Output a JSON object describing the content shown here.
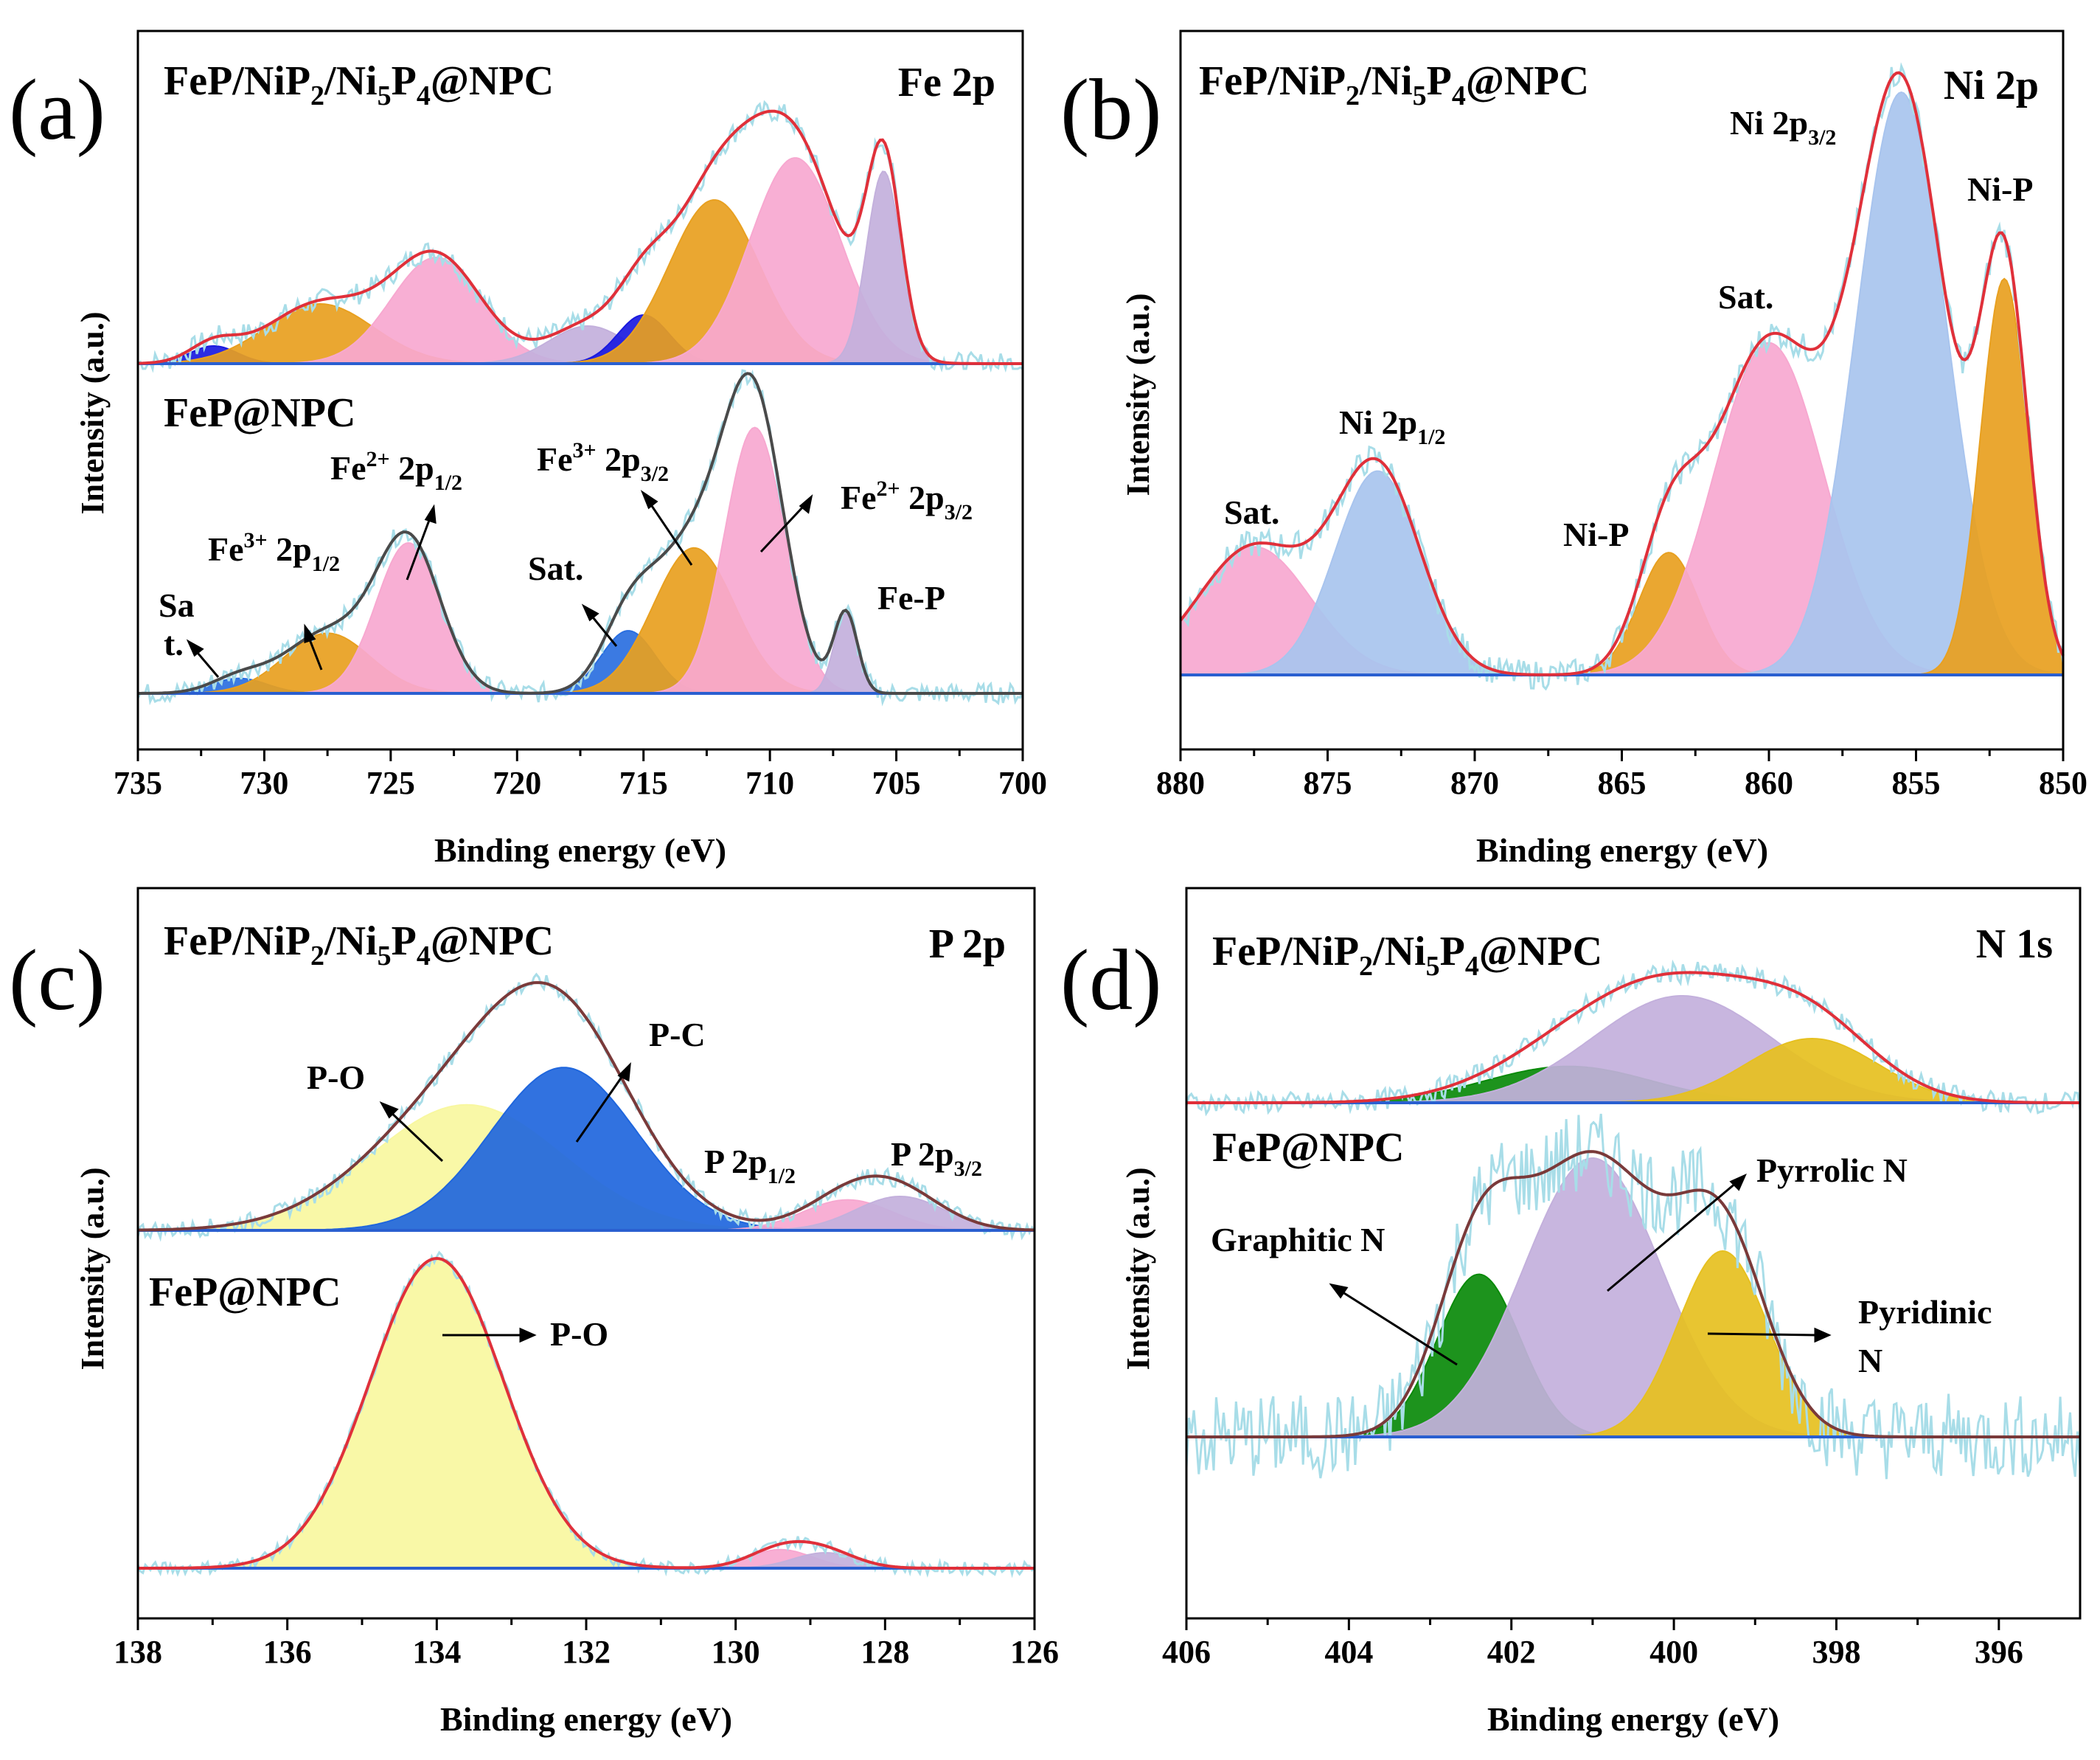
{
  "chart_data": [
    {
      "panel": "(a)",
      "type": "line",
      "title": "Fe 2p",
      "xlabel": "Binding energy (eV)",
      "ylabel": "Intensity (a.u.)",
      "xlim": [
        735,
        700
      ],
      "xticks": [
        735,
        730,
        725,
        720,
        715,
        710,
        705,
        700
      ],
      "subplots": [
        {
          "sample": "FeP/NiP2/Ni5P4@NPC",
          "sample_main": "FeP/NiP",
          "sub1": "2",
          "sample_mid": "/Ni",
          "sub2": "5",
          "sample_mid2": "P",
          "sub3": "4",
          "sample_tail": "@NPC",
          "ylim": [
            0,
            1.3
          ],
          "peaks": [
            {
              "center": 732.0,
              "height": 0.08,
              "fwhm": 2.2,
              "color": "#1a1adf",
              "name": "Sat."
            },
            {
              "center": 727.8,
              "height": 0.27,
              "fwhm": 5.0,
              "color": "#e8a020",
              "name": "Fe3+ 2p1/2"
            },
            {
              "center": 723.2,
              "height": 0.48,
              "fwhm": 4.2,
              "color": "#f7a8d0",
              "name": "Fe2+ 2p1/2"
            },
            {
              "center": 717.2,
              "height": 0.17,
              "fwhm": 3.6,
              "color": "#c3b0dc",
              "name": "Sat."
            },
            {
              "center": 715.0,
              "height": 0.22,
              "fwhm": 2.4,
              "color": "#1a1adf",
              "name": "Sat."
            },
            {
              "center": 712.2,
              "height": 0.74,
              "fwhm": 4.2,
              "color": "#e8a020",
              "name": "Fe3+ 2p3/2"
            },
            {
              "center": 709.0,
              "height": 0.93,
              "fwhm": 4.2,
              "color": "#f7a8d0",
              "name": "Fe2+ 2p3/2"
            },
            {
              "center": 705.5,
              "height": 0.87,
              "fwhm": 1.6,
              "color": "#c3b0dc",
              "name": "Fe-P"
            }
          ],
          "envelope_color": "#e0303a"
        },
        {
          "sample": "FeP@NPC",
          "ylim": [
            0,
            1.3
          ],
          "peaks": [
            {
              "center": 731.0,
              "height": 0.06,
              "fwhm": 2.6,
              "color": "#2a6fe0",
              "name": "Sat."
            },
            {
              "center": 727.5,
              "height": 0.24,
              "fwhm": 4.0,
              "color": "#e8a020",
              "name": "Fe3+ 2p1/2"
            },
            {
              "center": 724.3,
              "height": 0.6,
              "fwhm": 3.0,
              "color": "#f7a8d0",
              "name": "Fe2+ 2p1/2"
            },
            {
              "center": 715.6,
              "height": 0.25,
              "fwhm": 2.5,
              "color": "#2a6fe0",
              "name": "Sat."
            },
            {
              "center": 713.0,
              "height": 0.58,
              "fwhm": 3.8,
              "color": "#e8a020",
              "name": "Fe3+ 2p3/2"
            },
            {
              "center": 710.6,
              "height": 1.06,
              "fwhm": 2.8,
              "color": "#f7a8d0",
              "name": "Fe2+ 2p3/2"
            },
            {
              "center": 707.0,
              "height": 0.32,
              "fwhm": 1.1,
              "color": "#c3b0dc",
              "name": "Fe-P"
            }
          ],
          "envelope_color": "#4a4a4a"
        }
      ],
      "panel_label": "(a)",
      "annotations": {
        "sat": "Sa",
        "sat2": "t.",
        "fe3_half_main": "Fe",
        "fe3_half_sup": "3+",
        "fe3_half_mid": " 2p",
        "fe3_half_sub": "1/2",
        "fe2_half_main": "Fe",
        "fe2_half_sup": "2+",
        "fe2_half_mid": " 2p",
        "fe2_half_sub": "1/2",
        "sat_b": "Sat.",
        "fe3_32_main": "Fe",
        "fe3_32_sup": "3+",
        "fe3_32_mid": " 2p",
        "fe3_32_sub": "3/2",
        "fe2_32_main": "Fe",
        "fe2_32_sup": "2+",
        "fe2_32_mid": " 2p",
        "fe2_32_sub": "3/2",
        "fep": "Fe-P"
      }
    },
    {
      "panel": "(b)",
      "type": "line",
      "title": "Ni 2p",
      "xlabel": "Binding energy (eV)",
      "ylabel": "Intensity (a.u.)",
      "xlim": [
        880,
        850
      ],
      "xticks": [
        880,
        875,
        870,
        865,
        860,
        855,
        850
      ],
      "sample": "FeP/NiP2/Ni5P4@NPC",
      "peaks": [
        {
          "center": 877.5,
          "height": 0.22,
          "fwhm": 4.5,
          "color": "#f7a8d0",
          "name": "Sat."
        },
        {
          "center": 873.3,
          "height": 0.35,
          "fwhm": 3.4,
          "color": "#a8c4ee",
          "name": "Ni 2p1/2"
        },
        {
          "center": 863.4,
          "height": 0.21,
          "fwhm": 2.4,
          "color": "#e8a020",
          "name": "Ni-P"
        },
        {
          "center": 860.0,
          "height": 0.57,
          "fwhm": 4.4,
          "color": "#f7a8d0",
          "name": "Sat."
        },
        {
          "center": 855.5,
          "height": 1.0,
          "fwhm": 3.6,
          "color": "#a8c4ee",
          "name": "Ni 2p3/2"
        },
        {
          "center": 852.0,
          "height": 0.68,
          "fwhm": 1.9,
          "color": "#e8a020",
          "name": "Ni-P"
        }
      ],
      "envelope_color": "#e0303a",
      "annotations": {
        "sat_left": "Sat.",
        "ni_half_main": "Ni 2p",
        "ni_half_sub": "1/2",
        "nip_left": "Ni-P",
        "sat_mid": "Sat.",
        "ni_32_main": "Ni 2p",
        "ni_32_sub": "3/2",
        "nip_right": "Ni-P"
      }
    },
    {
      "panel": "(c)",
      "type": "line",
      "title": "P 2p",
      "xlabel": "Binding energy (eV)",
      "ylabel": "Intensity (a.u.)",
      "xlim": [
        138,
        126
      ],
      "xticks": [
        138,
        136,
        134,
        132,
        130,
        128,
        126
      ],
      "subplots": [
        {
          "sample": "FeP/NiP2/Ni5P4@NPC",
          "peaks": [
            {
              "center": 133.6,
              "height": 0.37,
              "fwhm": 3.0,
              "color": "#f8f7a0",
              "name": "P-O"
            },
            {
              "center": 132.3,
              "height": 0.48,
              "fwhm": 2.3,
              "color": "#1f66dd",
              "name": "P-C"
            },
            {
              "center": 128.5,
              "height": 0.09,
              "fwhm": 1.4,
              "color": "#f7a8d0",
              "name": "P 2p1/2"
            },
            {
              "center": 127.8,
              "height": 0.1,
              "fwhm": 1.4,
              "color": "#c3b0dc",
              "name": "P 2p3/2"
            }
          ],
          "envelope_color": "#7a3a3a"
        },
        {
          "sample": "FeP@NPC",
          "peaks": [
            {
              "center": 134.0,
              "height": 1.0,
              "fwhm": 2.1,
              "color": "#f8f7a0",
              "name": "P-O"
            },
            {
              "center": 129.4,
              "height": 0.06,
              "fwhm": 1.0,
              "color": "#f7a8d0",
              "name": "P 2p1/2"
            },
            {
              "center": 128.8,
              "height": 0.05,
              "fwhm": 1.0,
              "color": "#c3b0dc",
              "name": "P 2p3/2"
            }
          ],
          "envelope_color": "#e0303a"
        }
      ],
      "annotations": {
        "po_top": "P-O",
        "pc": "P-C",
        "p12_main": "P 2p",
        "p12_sub": "1/2",
        "p32_main": "P 2p",
        "p32_sub": "3/2",
        "po_bottom": "P-O"
      }
    },
    {
      "panel": "(d)",
      "type": "line",
      "title": "N 1s",
      "xlabel": "Binding energy (eV)",
      "ylabel": "Intensity (a.u.)",
      "xlim": [
        406,
        395
      ],
      "xticks": [
        406,
        404,
        402,
        400,
        398,
        396
      ],
      "subplots": [
        {
          "sample": "FeP/NiP2/Ni5P4@NPC",
          "peaks": [
            {
              "center": 401.3,
              "height": 0.17,
              "fwhm": 2.4,
              "color": "#0a8a0a",
              "name": "Graphitic N"
            },
            {
              "center": 399.9,
              "height": 0.5,
              "fwhm": 2.6,
              "color": "#c3b0dc",
              "name": "Pyrrolic N"
            },
            {
              "center": 398.3,
              "height": 0.3,
              "fwhm": 1.9,
              "color": "#e6c020",
              "name": "Pyridinic N"
            }
          ],
          "envelope_color": "#e0303a"
        },
        {
          "sample": "FeP@NPC",
          "peaks": [
            {
              "center": 402.4,
              "height": 0.49,
              "fwhm": 1.2,
              "color": "#0a8a0a",
              "name": "Graphitic N"
            },
            {
              "center": 401.0,
              "height": 0.84,
              "fwhm": 2.0,
              "color": "#c3b0dc",
              "name": "Pyrrolic N"
            },
            {
              "center": 399.4,
              "height": 0.56,
              "fwhm": 1.3,
              "color": "#e6c020",
              "name": "Pyridinic N"
            }
          ],
          "envelope_color": "#7a3a3a"
        }
      ],
      "annotations": {
        "graphitic": "Graphitic N",
        "pyrrolic": "Pyrrolic N",
        "pyridinic1": "Pyridinic",
        "pyridinic2": "N"
      }
    }
  ],
  "panel_labels": [
    "(a)",
    "(b)",
    "(c)",
    "(d)"
  ],
  "samples": {
    "composite_main": "FeP/NiP",
    "composite_sub1": "2",
    "composite_mid": "/Ni",
    "composite_sub2": "5",
    "composite_mid2": "P",
    "composite_sub3": "4",
    "composite_tail": "@NPC",
    "fep": "FeP@NPC"
  },
  "colors": {
    "noise": "#a8dde8",
    "baseline": "#2a5fd0",
    "axis": "#000000"
  }
}
